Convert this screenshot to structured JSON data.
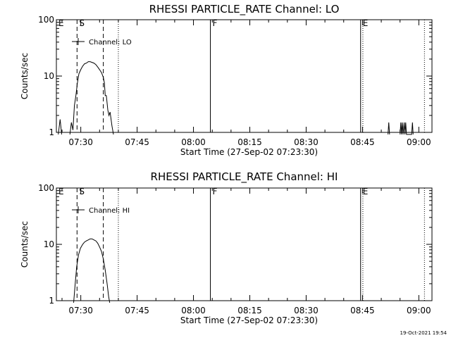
{
  "footer": {
    "timestamp": "19-Oct-2021 19:54"
  },
  "chart_data": [
    {
      "type": "line",
      "title": "RHESSI PARTICLE_RATE Channel: LO",
      "xlabel": "Start Time (27-Sep-02 07:23:30)",
      "ylabel": "Counts/sec",
      "yscale": "log",
      "ylim": [
        1,
        100
      ],
      "xlim_min_after_start": [
        0,
        100
      ],
      "xtick_labels": [
        "07:30",
        "07:45",
        "08:00",
        "08:15",
        "08:30",
        "08:45",
        "09:00"
      ],
      "ytick_labels": [
        "1",
        "10",
        "100"
      ],
      "legend": {
        "label": "Channel: LO",
        "position": "top-left"
      },
      "markers": [
        {
          "label": "E",
          "type": "solid",
          "x": 0
        },
        {
          "label": "S",
          "type": "dashed",
          "x": 5.5
        },
        {
          "label": "",
          "type": "dashed",
          "x": 12.5
        },
        {
          "label": "",
          "type": "dotted",
          "x": 16.5
        },
        {
          "label": "F",
          "type": "solid",
          "x": 41
        },
        {
          "label": "E",
          "type": "solid",
          "x": 81
        },
        {
          "label": "",
          "type": "dotted",
          "x": 81.6
        },
        {
          "label": "",
          "type": "dotted",
          "x": 98
        }
      ],
      "series": [
        {
          "name": "Channel: LO",
          "points": [
            [
              0.5,
              0.9
            ],
            [
              1.0,
              1.7
            ],
            [
              1.4,
              0.9
            ],
            [
              3.6,
              0.9
            ],
            [
              4.0,
              1.5
            ],
            [
              4.4,
              1.1
            ],
            [
              4.8,
              3.0
            ],
            [
              5.2,
              4.5
            ],
            [
              5.6,
              7.5
            ],
            [
              6.0,
              11
            ],
            [
              6.5,
              13
            ],
            [
              7.0,
              15
            ],
            [
              7.5,
              16.5
            ],
            [
              8.0,
              17
            ],
            [
              8.5,
              18
            ],
            [
              9.0,
              18
            ],
            [
              9.5,
              17.5
            ],
            [
              10.0,
              17
            ],
            [
              10.5,
              16
            ],
            [
              11.0,
              14.5
            ],
            [
              11.5,
              13
            ],
            [
              12.0,
              11.5
            ],
            [
              12.5,
              9.5
            ],
            [
              12.8,
              7.5
            ],
            [
              13.0,
              4.5
            ],
            [
              13.3,
              4.5
            ],
            [
              13.7,
              2.5
            ],
            [
              14.0,
              2.0
            ],
            [
              14.3,
              2.3
            ],
            [
              14.8,
              1.3
            ],
            [
              15.2,
              0.9
            ],
            [
              88.3,
              0.9
            ],
            [
              88.5,
              1.5
            ],
            [
              88.7,
              0.9
            ],
            [
              91.5,
              0.9
            ],
            [
              91.7,
              1.5
            ],
            [
              91.9,
              0.9
            ],
            [
              92.1,
              1.5
            ],
            [
              92.3,
              0.9
            ],
            [
              92.6,
              1.5
            ],
            [
              92.8,
              0.9
            ],
            [
              93.0,
              1.5
            ],
            [
              93.2,
              0.9
            ],
            [
              94.6,
              0.9
            ],
            [
              94.8,
              1.5
            ],
            [
              95.0,
              0.9
            ]
          ]
        }
      ]
    },
    {
      "type": "line",
      "title": "RHESSI PARTICLE_RATE Channel: HI",
      "xlabel": "Start Time (27-Sep-02 07:23:30)",
      "ylabel": "Counts/sec",
      "yscale": "log",
      "ylim": [
        1,
        100
      ],
      "xlim_min_after_start": [
        0,
        100
      ],
      "xtick_labels": [
        "07:30",
        "07:45",
        "08:00",
        "08:15",
        "08:30",
        "08:45",
        "09:00"
      ],
      "ytick_labels": [
        "1",
        "10",
        "100"
      ],
      "legend": {
        "label": "Channel: HI",
        "position": "top-left"
      },
      "markers": [
        {
          "label": "E",
          "type": "solid",
          "x": 0
        },
        {
          "label": "S",
          "type": "dashed",
          "x": 5.5
        },
        {
          "label": "",
          "type": "dashed",
          "x": 12.5
        },
        {
          "label": "",
          "type": "dotted",
          "x": 16.5
        },
        {
          "label": "F",
          "type": "solid",
          "x": 41
        },
        {
          "label": "E",
          "type": "solid",
          "x": 81
        },
        {
          "label": "",
          "type": "dotted",
          "x": 81.6
        },
        {
          "label": "",
          "type": "dotted",
          "x": 98
        }
      ],
      "series": [
        {
          "name": "Channel: HI",
          "points": [
            [
              4.6,
              0.9
            ],
            [
              5.0,
              2.0
            ],
            [
              5.4,
              4.0
            ],
            [
              5.9,
              6.5
            ],
            [
              6.4,
              8.5
            ],
            [
              7.0,
              10
            ],
            [
              7.5,
              11
            ],
            [
              8.0,
              11.5
            ],
            [
              8.5,
              12
            ],
            [
              9.0,
              12.5
            ],
            [
              9.5,
              12.5
            ],
            [
              10.0,
              12
            ],
            [
              10.5,
              11.5
            ],
            [
              11.0,
              10.5
            ],
            [
              11.5,
              9
            ],
            [
              12.0,
              7.5
            ],
            [
              12.5,
              5.5
            ],
            [
              13.0,
              3.5
            ],
            [
              13.5,
              2.0
            ],
            [
              13.9,
              1.2
            ],
            [
              14.2,
              0.9
            ]
          ]
        }
      ]
    }
  ]
}
